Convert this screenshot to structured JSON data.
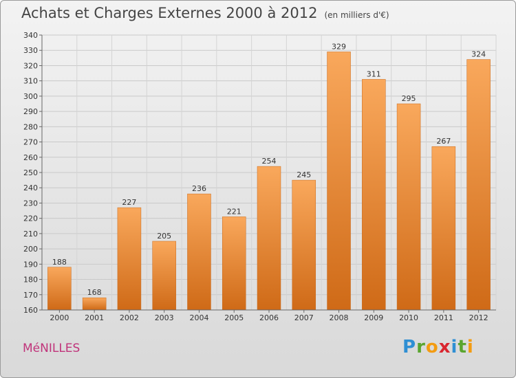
{
  "title": "Achats et Charges Externes 2000 à 2012",
  "unit_note": "(en milliers d'€)",
  "commune": "MéNILLES",
  "logo": {
    "letters": [
      "P",
      "r",
      "o",
      "x",
      "i",
      "t",
      "i"
    ],
    "colors": [
      "#2f8fd3",
      "#5aa52f",
      "#f39c12",
      "#d9262f",
      "#2f8fd3",
      "#5aa52f",
      "#f39c12"
    ]
  },
  "chart_data": {
    "type": "bar",
    "categories": [
      "2000",
      "2001",
      "2002",
      "2003",
      "2004",
      "2005",
      "2006",
      "2007",
      "2008",
      "2009",
      "2010",
      "2011",
      "2012"
    ],
    "values": [
      188,
      168,
      227,
      205,
      236,
      221,
      254,
      245,
      329,
      311,
      295,
      267,
      324
    ],
    "ylim": [
      160,
      340
    ],
    "yticks": [
      160,
      170,
      180,
      190,
      200,
      210,
      220,
      230,
      240,
      250,
      260,
      270,
      280,
      290,
      300,
      310,
      320,
      330,
      340
    ],
    "grid": true,
    "bar_color": "#f08a2c"
  }
}
